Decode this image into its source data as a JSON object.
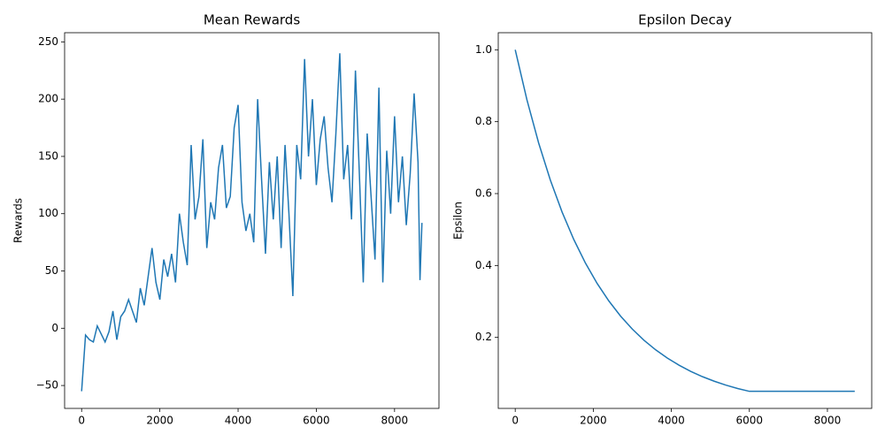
{
  "chart_data": [
    {
      "type": "line",
      "title": "Mean Rewards",
      "ylabel": "Rewards",
      "color": "#1f77b4",
      "x": [
        0,
        100,
        200,
        300,
        400,
        500,
        600,
        700,
        800,
        900,
        1000,
        1100,
        1200,
        1300,
        1400,
        1500,
        1600,
        1700,
        1800,
        1900,
        2000,
        2100,
        2200,
        2300,
        2400,
        2500,
        2600,
        2700,
        2800,
        2900,
        3000,
        3100,
        3200,
        3300,
        3400,
        3500,
        3600,
        3700,
        3800,
        3900,
        4000,
        4100,
        4200,
        4300,
        4400,
        4500,
        4600,
        4700,
        4800,
        4900,
        5000,
        5100,
        5200,
        5300,
        5400,
        5500,
        5600,
        5700,
        5800,
        5900,
        6000,
        6100,
        6200,
        6300,
        6400,
        6500,
        6600,
        6700,
        6800,
        6900,
        7000,
        7100,
        7200,
        7300,
        7400,
        7500,
        7600,
        7700,
        7800,
        7900,
        8000,
        8100,
        8200,
        8300,
        8400,
        8500,
        8600,
        8650,
        8700
      ],
      "values": [
        -55,
        -6,
        -10,
        -12,
        2,
        -5,
        -12,
        -3,
        15,
        -10,
        10,
        15,
        25,
        15,
        5,
        35,
        20,
        45,
        70,
        40,
        25,
        60,
        45,
        65,
        40,
        100,
        75,
        55,
        160,
        95,
        115,
        165,
        70,
        110,
        95,
        140,
        160,
        105,
        115,
        175,
        195,
        110,
        85,
        100,
        75,
        200,
        130,
        65,
        145,
        95,
        150,
        70,
        160,
        100,
        28,
        160,
        130,
        235,
        150,
        200,
        125,
        165,
        185,
        140,
        110,
        170,
        240,
        130,
        160,
        95,
        225,
        135,
        40,
        170,
        115,
        60,
        210,
        40,
        155,
        100,
        185,
        110,
        150,
        90,
        135,
        205,
        145,
        42,
        92
      ],
      "xlim": [
        -435,
        9135
      ],
      "ylim": [
        -70,
        258
      ],
      "xticks": [
        0,
        2000,
        4000,
        6000,
        8000
      ],
      "yticks": [
        {
          "value": -50,
          "label": "−50"
        },
        0,
        50,
        100,
        150,
        200,
        250
      ]
    },
    {
      "type": "line",
      "title": "Epsilon Decay",
      "ylabel": "Epsilon",
      "color": "#1f77b4",
      "x": [
        0,
        300,
        600,
        900,
        1200,
        1500,
        1800,
        2100,
        2400,
        2700,
        3000,
        3300,
        3600,
        3900,
        4200,
        4500,
        4800,
        5100,
        5400,
        5700,
        6000,
        6300,
        6600,
        6900,
        7200,
        7500,
        7800,
        8100,
        8400,
        8700
      ],
      "values": [
        1.0,
        0.8607,
        0.7408,
        0.6376,
        0.5488,
        0.4724,
        0.4066,
        0.3499,
        0.3012,
        0.2592,
        0.2231,
        0.192,
        0.1653,
        0.1423,
        0.1225,
        0.1054,
        0.0907,
        0.0781,
        0.0672,
        0.0578,
        0.05,
        0.05,
        0.05,
        0.05,
        0.05,
        0.05,
        0.05,
        0.05,
        0.05,
        0.05
      ],
      "xlim": [
        -435,
        9135
      ],
      "ylim": [
        0.0025,
        1.0475
      ],
      "xticks": [
        0,
        2000,
        4000,
        6000,
        8000
      ],
      "yticks": [
        0.2,
        0.4,
        0.6,
        0.8,
        {
          "value": 1.0,
          "label": "1.0"
        }
      ]
    }
  ]
}
